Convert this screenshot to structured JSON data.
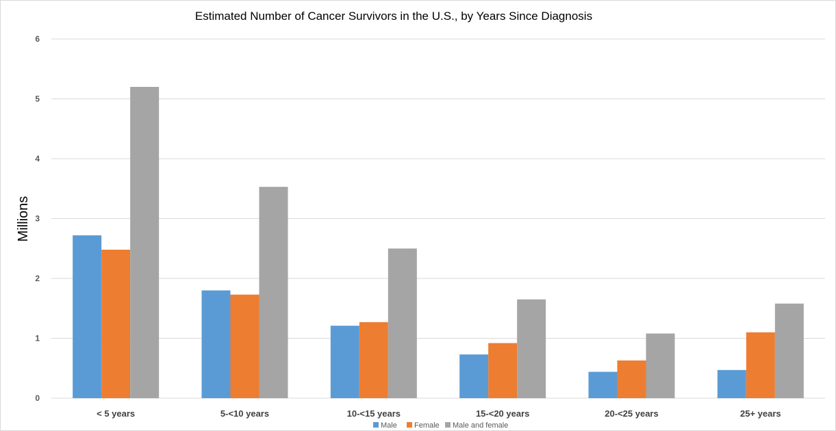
{
  "chart_data": {
    "type": "bar",
    "title": "Estimated Number of Cancer Survivors in the U.S., by Years Since Diagnosis",
    "xlabel": "",
    "ylabel": "Millions",
    "ylim": [
      0,
      6
    ],
    "yticks": [
      "0",
      "1",
      "2",
      "3",
      "4",
      "5",
      "6"
    ],
    "categories": [
      "< 5 years",
      "5-<10 years",
      "10-<15 years",
      "15-<20 years",
      "20-<25 years",
      "25+ years"
    ],
    "series": [
      {
        "name": "Male",
        "color": "#5b9bd5",
        "values": [
          2.72,
          1.8,
          1.21,
          0.73,
          0.44,
          0.47
        ]
      },
      {
        "name": "Female",
        "color": "#ed7d31",
        "values": [
          2.48,
          1.73,
          1.27,
          0.92,
          0.63,
          1.1
        ]
      },
      {
        "name": "Male and female",
        "color": "#a5a5a5",
        "values": [
          5.2,
          3.53,
          2.5,
          1.65,
          1.08,
          1.58
        ]
      }
    ],
    "grid": true,
    "legend_position": "bottom"
  }
}
